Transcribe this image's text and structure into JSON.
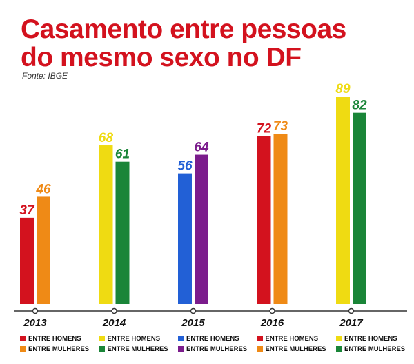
{
  "header": {
    "title_line1": "Casamento entre pessoas",
    "title_line2": "do mesmo sexo no DF",
    "source": "Fonte: IBGE"
  },
  "colors": {
    "title": "#d3121e",
    "red": "#d3121e",
    "orange": "#ef8a16",
    "yellow": "#efdb12",
    "green": "#1a8538",
    "blue": "#2260d6",
    "purple": "#7b1c8c"
  },
  "chart_data": {
    "type": "bar",
    "title": "Casamento entre pessoas do mesmo sexo no DF",
    "xlabel": "",
    "ylabel": "",
    "ylim": [
      0,
      89
    ],
    "grid": false,
    "legend_position": "bottom",
    "categories": [
      "2013",
      "2014",
      "2015",
      "2016",
      "2017"
    ],
    "groups": [
      {
        "year": "2013",
        "bars": [
          {
            "label": "ENTRE HOMENS",
            "value": 37,
            "color": "#d3121e"
          },
          {
            "label": "ENTRE MULHERES",
            "value": 46,
            "color": "#ef8a16"
          }
        ]
      },
      {
        "year": "2014",
        "bars": [
          {
            "label": "ENTRE HOMENS",
            "value": 68,
            "color": "#efdb12"
          },
          {
            "label": "ENTRE MULHERES",
            "value": 61,
            "color": "#1a8538"
          }
        ]
      },
      {
        "year": "2015",
        "bars": [
          {
            "label": "ENTRE HOMENS",
            "value": 56,
            "color": "#2260d6"
          },
          {
            "label": "ENTRE MULHERES",
            "value": 64,
            "color": "#7b1c8c"
          }
        ]
      },
      {
        "year": "2016",
        "bars": [
          {
            "label": "ENTRE HOMENS",
            "value": 72,
            "color": "#d3121e"
          },
          {
            "label": "ENTRE MULHERES",
            "value": 73,
            "color": "#ef8a16"
          }
        ]
      },
      {
        "year": "2017",
        "bars": [
          {
            "label": "ENTRE HOMENS",
            "value": 89,
            "color": "#efdb12"
          },
          {
            "label": "ENTRE MULHERES",
            "value": 82,
            "color": "#1a8538"
          }
        ]
      }
    ]
  }
}
